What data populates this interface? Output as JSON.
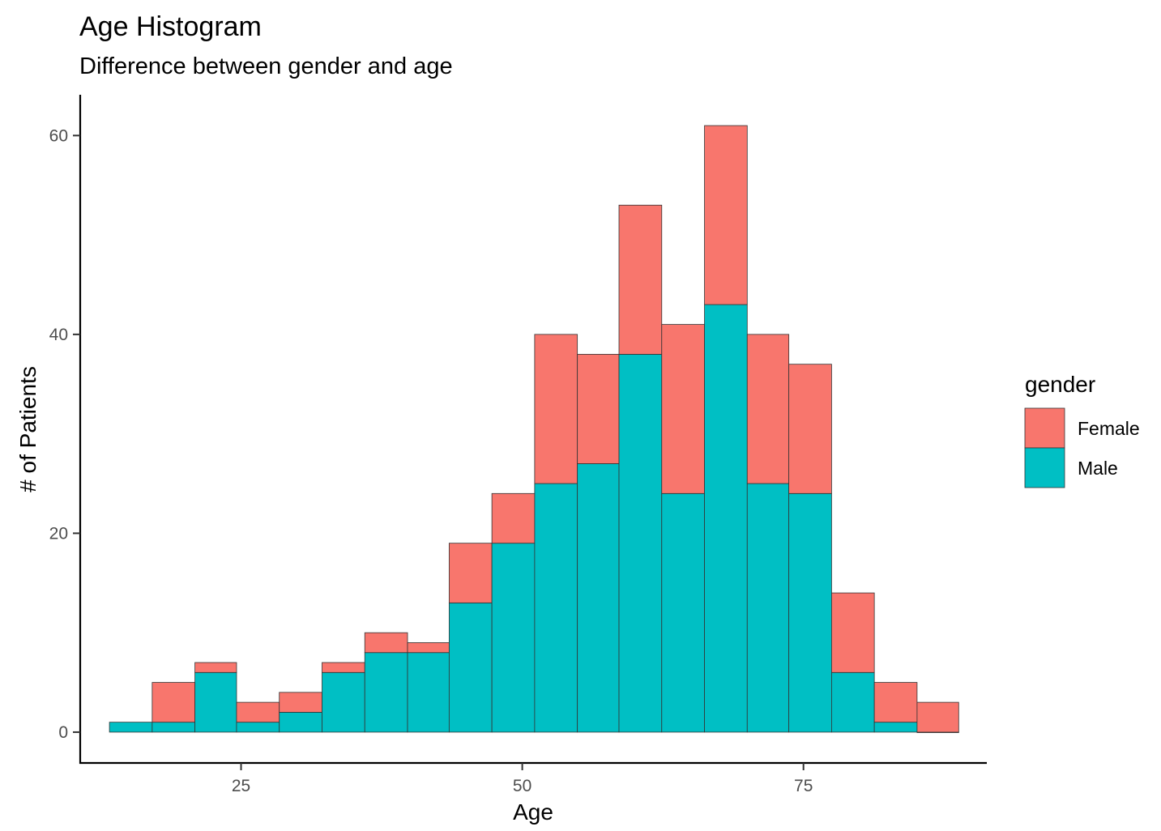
{
  "chart_data": {
    "type": "bar",
    "subtype": "stacked-histogram",
    "title": "Age Histogram",
    "subtitle": "Difference between gender and age",
    "xlabel": "Age",
    "ylabel": "# of Patients",
    "xlim": [
      10.7,
      91.3
    ],
    "ylim": [
      -3.1,
      64.1
    ],
    "x_ticks": [
      25,
      50,
      75
    ],
    "y_ticks": [
      0,
      20,
      40,
      60
    ],
    "grid": false,
    "legend": {
      "title": "gender",
      "position": "right"
    },
    "bins": [
      [
        13.3,
        17.1
      ],
      [
        17.1,
        20.9
      ],
      [
        20.9,
        24.6
      ],
      [
        24.6,
        28.4
      ],
      [
        28.4,
        32.2
      ],
      [
        32.2,
        36.0
      ],
      [
        36.0,
        39.8
      ],
      [
        39.8,
        43.5
      ],
      [
        43.5,
        47.3
      ],
      [
        47.3,
        51.1
      ],
      [
        51.1,
        54.9
      ],
      [
        54.9,
        58.6
      ],
      [
        58.6,
        62.4
      ],
      [
        62.4,
        66.2
      ],
      [
        66.2,
        70.0
      ],
      [
        70.0,
        73.7
      ],
      [
        73.7,
        77.5
      ],
      [
        77.5,
        81.3
      ],
      [
        81.3,
        85.1
      ],
      [
        85.1,
        88.8
      ]
    ],
    "series": [
      {
        "name": "Male",
        "color": "#00BFC4",
        "values": [
          1,
          1,
          6,
          1,
          2,
          6,
          8,
          8,
          13,
          19,
          25,
          27,
          38,
          24,
          43,
          25,
          24,
          6,
          1,
          0
        ]
      },
      {
        "name": "Female",
        "color": "#F8766D",
        "values": [
          0,
          4,
          1,
          2,
          2,
          1,
          2,
          1,
          6,
          5,
          15,
          11,
          15,
          17,
          18,
          15,
          13,
          8,
          4,
          3
        ]
      }
    ],
    "totals": [
      1,
      5,
      7,
      3,
      4,
      7,
      10,
      9,
      19,
      24,
      40,
      38,
      53,
      41,
      61,
      40,
      37,
      14,
      5,
      3
    ]
  }
}
